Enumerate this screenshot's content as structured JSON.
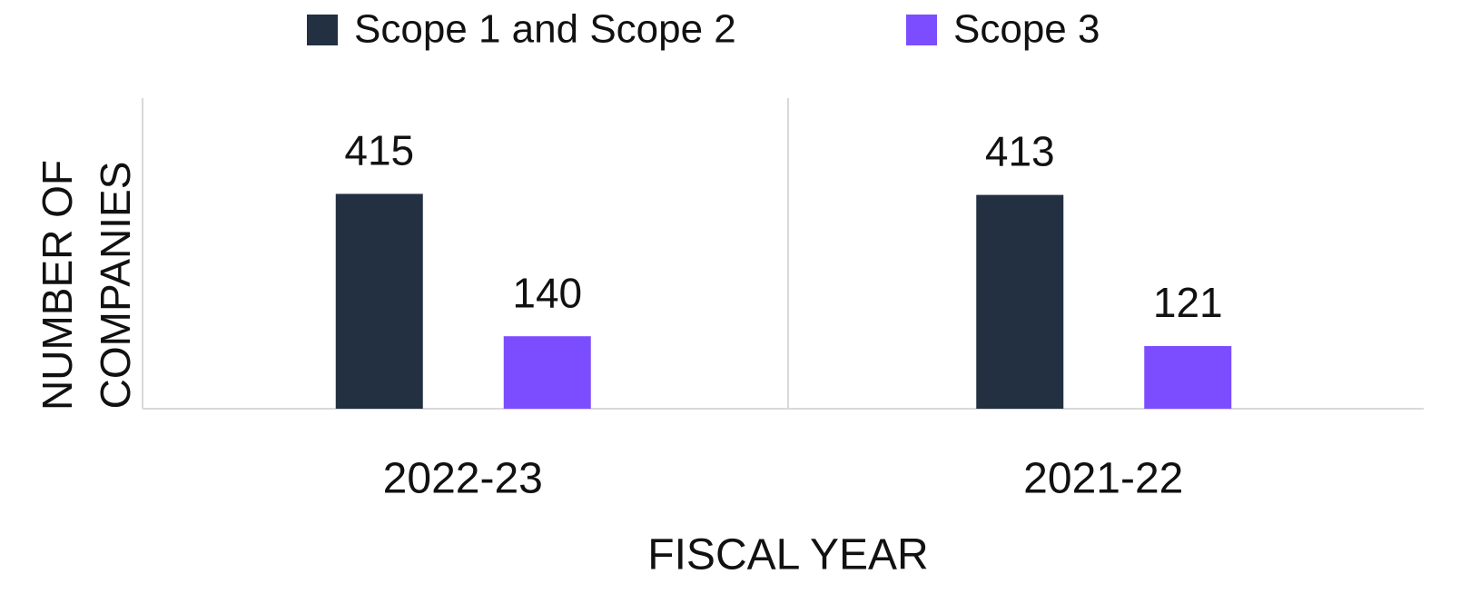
{
  "chart_data": {
    "type": "bar",
    "x_label": "FISCAL YEAR",
    "y_label": "NUMBER OF COMPANIES",
    "categories": [
      "2022-23",
      "2021-22"
    ],
    "series": [
      {
        "name": "Scope 1 and Scope 2",
        "color": "#223041",
        "values": [
          415,
          413
        ]
      },
      {
        "name": "Scope 3",
        "color": "#7c4dff",
        "values": [
          140,
          121
        ]
      }
    ],
    "ylim": [
      0,
      600
    ],
    "legend": "top"
  }
}
